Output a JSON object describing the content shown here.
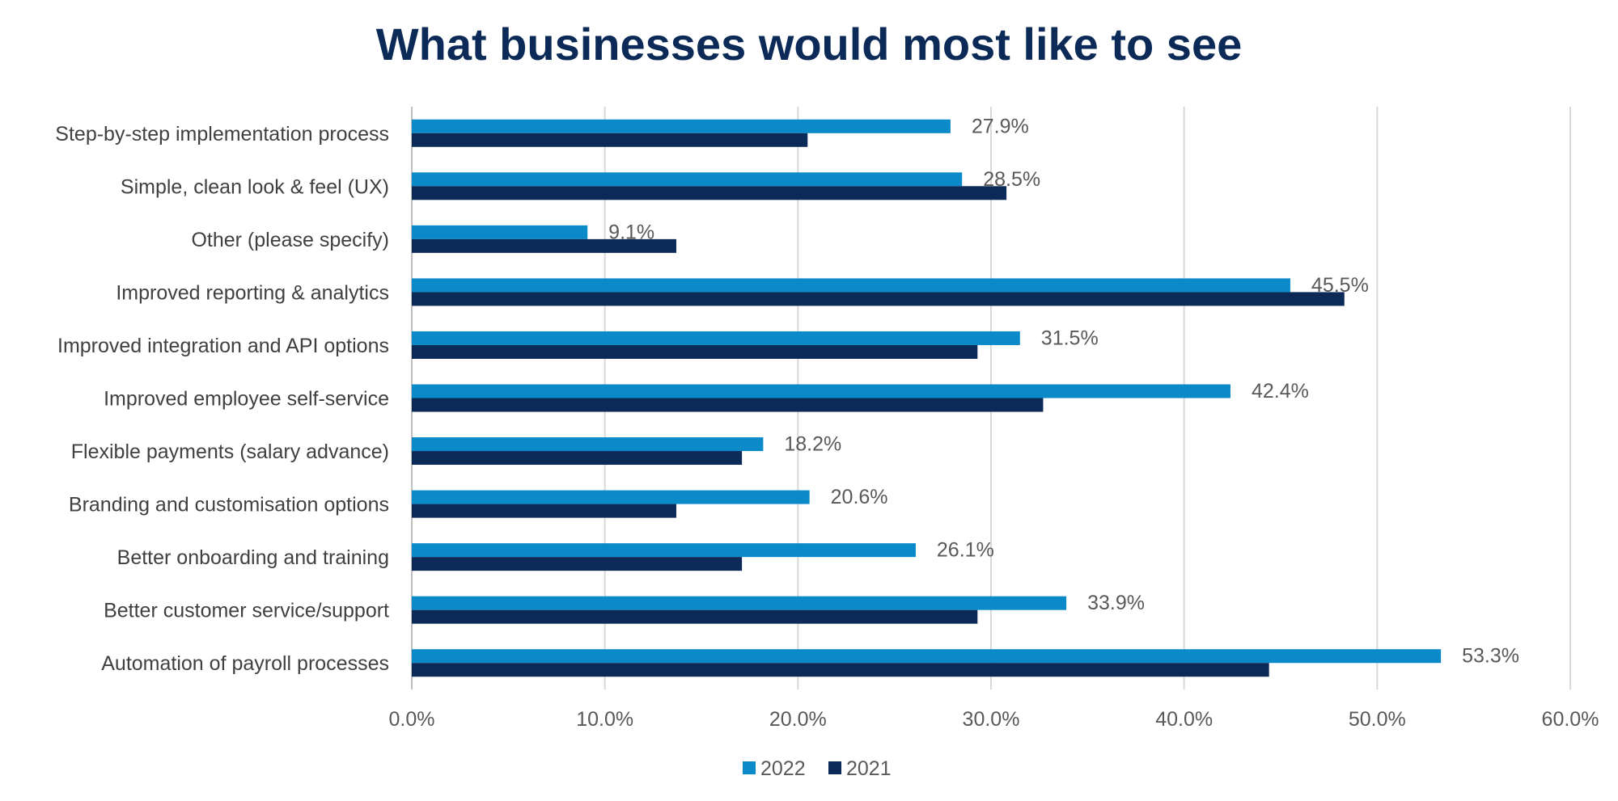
{
  "chart_data": {
    "type": "bar",
    "orientation": "horizontal",
    "title": "What businesses would most like to see",
    "xlabel": "",
    "ylabel": "",
    "xlim": [
      0,
      60
    ],
    "tick_values": [
      0,
      10,
      20,
      30,
      40,
      50,
      60
    ],
    "tick_labels": [
      "0.0%",
      "10.0%",
      "20.0%",
      "30.0%",
      "40.0%",
      "50.0%",
      "60.0%"
    ],
    "grid": "vertical",
    "legend_position": "bottom",
    "categories": [
      "Step-by-step implementation process",
      "Simple, clean look & feel (UX)",
      "Other (please specify)",
      "Improved reporting & analytics",
      "Improved integration and API options",
      "Improved employee self-service",
      "Flexible payments (salary advance)",
      "Branding and customisation options",
      "Better onboarding and training",
      "Better customer service/support",
      "Automation of payroll processes"
    ],
    "series": [
      {
        "name": "2022",
        "color": "#0a8ac9",
        "values": [
          27.9,
          28.5,
          9.1,
          45.5,
          31.5,
          42.4,
          18.2,
          20.6,
          26.1,
          33.9,
          53.3
        ],
        "labels": [
          "27.9%",
          "28.5%",
          "9.1%",
          "45.5%",
          "31.5%",
          "42.4%",
          "18.2%",
          "20.6%",
          "26.1%",
          "33.9%",
          "53.3%"
        ]
      },
      {
        "name": "2021",
        "color": "#0b2a57",
        "values": [
          20.5,
          30.8,
          13.7,
          48.3,
          29.3,
          32.7,
          17.1,
          13.7,
          17.1,
          29.3,
          44.4
        ]
      }
    ]
  }
}
